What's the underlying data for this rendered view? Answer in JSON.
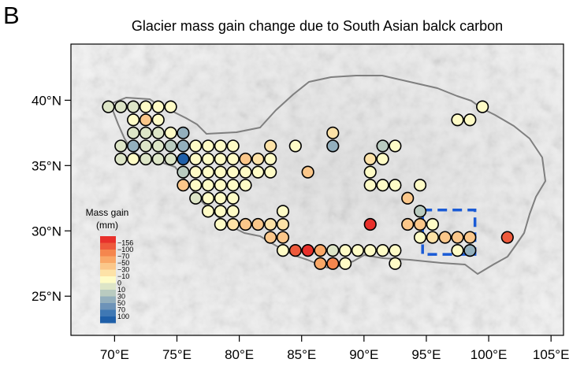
{
  "panel_label": "B",
  "title": "Glacier mass gain change due to South Asian balck carbon",
  "axes": {
    "x_ticks": [
      {
        "value": 70,
        "label": "70°E"
      },
      {
        "value": 75,
        "label": "75°E"
      },
      {
        "value": 80,
        "label": "80°E"
      },
      {
        "value": 85,
        "label": "85°E"
      },
      {
        "value": 90,
        "label": "90°E"
      },
      {
        "value": 95,
        "label": "95°E"
      },
      {
        "value": 100,
        "label": "100°E"
      },
      {
        "value": 105,
        "label": "105°E"
      }
    ],
    "y_ticks": [
      {
        "value": 40,
        "label": "40°N"
      },
      {
        "value": 35,
        "label": "35°N"
      },
      {
        "value": 30,
        "label": "30°N"
      },
      {
        "value": 25,
        "label": "25°N"
      }
    ],
    "xlim": [
      66.5,
      106
    ],
    "ylim": [
      22,
      44.3
    ]
  },
  "legend": {
    "title_line1": "Mass gain",
    "title_line2": "(mm)",
    "colors": [
      "#e8302b",
      "#ee5a3c",
      "#f5864e",
      "#f9a868",
      "#fbc78a",
      "#fde2a7",
      "#fefbc6",
      "#dde5c7",
      "#b9cbc0",
      "#93afbd",
      "#6d93b8",
      "#3f78b4",
      "#1f5fa8"
    ],
    "labels": [
      "−156",
      "−100",
      "−70",
      "−50",
      "−30",
      "−10",
      "0",
      "10",
      "30",
      "50",
      "70",
      "100"
    ]
  },
  "colors": {
    "outline": "#7f7f7f",
    "highlight_box": "#1a5bd6",
    "terrain_bg": "#ededed"
  },
  "highlight_box": {
    "lon_min": 94.7,
    "lon_max": 98.9,
    "lat_min": 28.2,
    "lat_max": 31.6
  },
  "chart_data": {
    "type": "scatter",
    "title": "Glacier mass gain change due to South Asian balck carbon",
    "value_label": "Mass gain (mm)",
    "points": [
      {
        "lon": 69.5,
        "lat": 39.5,
        "v": 5
      },
      {
        "lon": 70.5,
        "lat": 39.5,
        "v": 5
      },
      {
        "lon": 71.5,
        "lat": 39.5,
        "v": 10
      },
      {
        "lon": 72.5,
        "lat": 39.5,
        "v": 0
      },
      {
        "lon": 73.5,
        "lat": 39.5,
        "v": 0
      },
      {
        "lon": 74.5,
        "lat": 39.5,
        "v": 0
      },
      {
        "lon": 71.5,
        "lat": 38.5,
        "v": 0
      },
      {
        "lon": 72.5,
        "lat": 38.5,
        "v": -25
      },
      {
        "lon": 73.5,
        "lat": 38.5,
        "v": 0
      },
      {
        "lon": 71.5,
        "lat": 37.5,
        "v": 5
      },
      {
        "lon": 72.5,
        "lat": 37.5,
        "v": 5
      },
      {
        "lon": 73.5,
        "lat": 37.5,
        "v": 10
      },
      {
        "lon": 74.5,
        "lat": 37.5,
        "v": 0
      },
      {
        "lon": 75.5,
        "lat": 37.5,
        "v": 30
      },
      {
        "lon": 70.5,
        "lat": 36.5,
        "v": 10
      },
      {
        "lon": 71.5,
        "lat": 36.5,
        "v": 30
      },
      {
        "lon": 72.5,
        "lat": 36.5,
        "v": 10
      },
      {
        "lon": 73.5,
        "lat": 36.5,
        "v": 10
      },
      {
        "lon": 74.5,
        "lat": 36.5,
        "v": 20
      },
      {
        "lon": 75.5,
        "lat": 36.5,
        "v": 40
      },
      {
        "lon": 76.5,
        "lat": 36.5,
        "v": 0
      },
      {
        "lon": 77.5,
        "lat": 36.5,
        "v": 0
      },
      {
        "lon": 78.5,
        "lat": 36.5,
        "v": 0
      },
      {
        "lon": 79.5,
        "lat": 36.5,
        "v": 0
      },
      {
        "lon": 82.5,
        "lat": 36.5,
        "v": -5
      },
      {
        "lon": 84.5,
        "lat": 36.5,
        "v": 0
      },
      {
        "lon": 87.5,
        "lat": 37.5,
        "v": -5
      },
      {
        "lon": 87.5,
        "lat": 36.5,
        "v": 35
      },
      {
        "lon": 91.5,
        "lat": 36.5,
        "v": 25
      },
      {
        "lon": 92.5,
        "lat": 36.5,
        "v": 0
      },
      {
        "lon": 97.5,
        "lat": 38.5,
        "v": 0
      },
      {
        "lon": 98.5,
        "lat": 38.5,
        "v": 0
      },
      {
        "lon": 99.5,
        "lat": 39.5,
        "v": 0
      },
      {
        "lon": 70.5,
        "lat": 35.5,
        "v": 10
      },
      {
        "lon": 71.5,
        "lat": 35.5,
        "v": 0
      },
      {
        "lon": 72.5,
        "lat": 35.5,
        "v": 10
      },
      {
        "lon": 73.5,
        "lat": 35.5,
        "v": 10
      },
      {
        "lon": 74.5,
        "lat": 35.5,
        "v": 10
      },
      {
        "lon": 75.5,
        "lat": 35.5,
        "v": 90
      },
      {
        "lon": 76.5,
        "lat": 35.5,
        "v": 0
      },
      {
        "lon": 77.5,
        "lat": 35.5,
        "v": 0
      },
      {
        "lon": 78.5,
        "lat": 35.5,
        "v": 0
      },
      {
        "lon": 79.5,
        "lat": 35.5,
        "v": 0
      },
      {
        "lon": 80.5,
        "lat": 35.5,
        "v": -20
      },
      {
        "lon": 81.5,
        "lat": 35.5,
        "v": -15
      },
      {
        "lon": 82.5,
        "lat": 35.5,
        "v": 0
      },
      {
        "lon": 90.5,
        "lat": 35.5,
        "v": -15
      },
      {
        "lon": 91.5,
        "lat": 35.5,
        "v": 0
      },
      {
        "lon": 75.5,
        "lat": 34.5,
        "v": 15
      },
      {
        "lon": 76.5,
        "lat": 34.5,
        "v": 0
      },
      {
        "lon": 77.5,
        "lat": 34.5,
        "v": 0
      },
      {
        "lon": 78.5,
        "lat": 34.5,
        "v": 0
      },
      {
        "lon": 79.5,
        "lat": 34.5,
        "v": 0
      },
      {
        "lon": 80.5,
        "lat": 34.5,
        "v": 0
      },
      {
        "lon": 81.5,
        "lat": 34.5,
        "v": 0
      },
      {
        "lon": 82.5,
        "lat": 34.5,
        "v": 0
      },
      {
        "lon": 85.5,
        "lat": 34.5,
        "v": -35
      },
      {
        "lon": 90.5,
        "lat": 34.5,
        "v": 0
      },
      {
        "lon": 75.5,
        "lat": 33.5,
        "v": -25
      },
      {
        "lon": 76.5,
        "lat": 33.5,
        "v": 0
      },
      {
        "lon": 77.5,
        "lat": 33.5,
        "v": 0
      },
      {
        "lon": 78.5,
        "lat": 33.5,
        "v": 0
      },
      {
        "lon": 79.5,
        "lat": 33.5,
        "v": 0
      },
      {
        "lon": 80.5,
        "lat": 33.5,
        "v": 0
      },
      {
        "lon": 90.5,
        "lat": 33.5,
        "v": 0
      },
      {
        "lon": 91.5,
        "lat": 33.5,
        "v": 0
      },
      {
        "lon": 92.5,
        "lat": 33.5,
        "v": 0
      },
      {
        "lon": 94.5,
        "lat": 33.5,
        "v": 0
      },
      {
        "lon": 76.5,
        "lat": 32.5,
        "v": 10
      },
      {
        "lon": 77.5,
        "lat": 32.5,
        "v": 0
      },
      {
        "lon": 78.5,
        "lat": 32.5,
        "v": 0
      },
      {
        "lon": 79.5,
        "lat": 32.5,
        "v": 0
      },
      {
        "lon": 93.5,
        "lat": 32.5,
        "v": -20
      },
      {
        "lon": 77.5,
        "lat": 31.5,
        "v": 0
      },
      {
        "lon": 78.5,
        "lat": 31.5,
        "v": 0
      },
      {
        "lon": 79.5,
        "lat": 31.5,
        "v": 0
      },
      {
        "lon": 83.5,
        "lat": 31.5,
        "v": 0
      },
      {
        "lon": 94.5,
        "lat": 31.5,
        "v": 20
      },
      {
        "lon": 78.5,
        "lat": 30.5,
        "v": 0
      },
      {
        "lon": 79.5,
        "lat": 30.5,
        "v": -10
      },
      {
        "lon": 80.5,
        "lat": 30.5,
        "v": -20
      },
      {
        "lon": 81.5,
        "lat": 30.5,
        "v": -20
      },
      {
        "lon": 82.5,
        "lat": 30.5,
        "v": -15
      },
      {
        "lon": 83.5,
        "lat": 30.5,
        "v": -15
      },
      {
        "lon": 90.5,
        "lat": 30.5,
        "v": -156
      },
      {
        "lon": 93.5,
        "lat": 30.5,
        "v": -25
      },
      {
        "lon": 94.5,
        "lat": 30.5,
        "v": -30
      },
      {
        "lon": 95.5,
        "lat": 30.5,
        "v": 0
      },
      {
        "lon": 82.5,
        "lat": 29.5,
        "v": -25
      },
      {
        "lon": 83.5,
        "lat": 29.5,
        "v": -25
      },
      {
        "lon": 94.5,
        "lat": 29.5,
        "v": 0
      },
      {
        "lon": 95.5,
        "lat": 29.5,
        "v": -10
      },
      {
        "lon": 96.5,
        "lat": 29.5,
        "v": -20
      },
      {
        "lon": 97.5,
        "lat": 29.5,
        "v": -20
      },
      {
        "lon": 98.5,
        "lat": 29.5,
        "v": -20
      },
      {
        "lon": 101.5,
        "lat": 29.5,
        "v": -90
      },
      {
        "lon": 83.5,
        "lat": 28.5,
        "v": 0
      },
      {
        "lon": 84.5,
        "lat": 28.5,
        "v": -100
      },
      {
        "lon": 85.5,
        "lat": 28.5,
        "v": -130
      },
      {
        "lon": 86.5,
        "lat": 28.5,
        "v": -40
      },
      {
        "lon": 87.5,
        "lat": 28.5,
        "v": 10
      },
      {
        "lon": 88.5,
        "lat": 28.5,
        "v": 0
      },
      {
        "lon": 89.5,
        "lat": 28.5,
        "v": 0
      },
      {
        "lon": 90.5,
        "lat": 28.5,
        "v": 0
      },
      {
        "lon": 91.5,
        "lat": 28.5,
        "v": 0
      },
      {
        "lon": 92.5,
        "lat": 28.5,
        "v": 0
      },
      {
        "lon": 97.5,
        "lat": 28.5,
        "v": 0
      },
      {
        "lon": 98.5,
        "lat": 28.5,
        "v": 30
      },
      {
        "lon": 86.5,
        "lat": 27.5,
        "v": -40
      },
      {
        "lon": 87.5,
        "lat": 27.5,
        "v": -60
      },
      {
        "lon": 88.5,
        "lat": 27.5,
        "v": 0
      },
      {
        "lon": 92.5,
        "lat": 27.5,
        "v": 0
      }
    ]
  }
}
